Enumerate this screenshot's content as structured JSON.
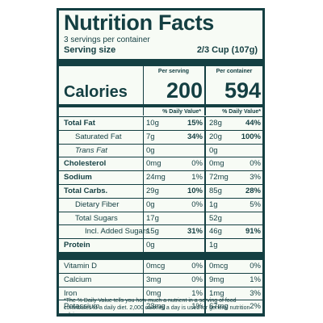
{
  "title": "Nutrition Facts",
  "servings": "3 servings per container",
  "serving_size": {
    "label": "Serving size",
    "value": "2/3 Cup (107g)"
  },
  "columns": {
    "per_serving": "Per serving",
    "per_container": "Per container"
  },
  "calories": {
    "label": "Calories",
    "per_serving": "200",
    "per_container": "594"
  },
  "dv_header": "% Daily Value*",
  "nutrients": [
    {
      "name": "Total Fat",
      "s_amt": "10g",
      "s_dv": "15%",
      "c_amt": "28g",
      "c_dv": "44%"
    },
    {
      "name": "Saturated Fat",
      "s_amt": "7g",
      "s_dv": "34%",
      "c_amt": "20g",
      "c_dv": "100%"
    },
    {
      "name": "Trans Fat",
      "s_amt": "0g",
      "s_dv": "",
      "c_amt": "0g",
      "c_dv": ""
    },
    {
      "name": "Cholesterol",
      "s_amt": "0mg",
      "s_dv": "0%",
      "c_amt": "0mg",
      "c_dv": "0%"
    },
    {
      "name": "Sodium",
      "s_amt": "24mg",
      "s_dv": "1%",
      "c_amt": "72mg",
      "c_dv": "3%"
    },
    {
      "name": "Total Carbs.",
      "s_amt": "29g",
      "s_dv": "10%",
      "c_amt": "85g",
      "c_dv": "28%"
    },
    {
      "name": "Dietary Fiber",
      "s_amt": "0g",
      "s_dv": "0%",
      "c_amt": "1g",
      "c_dv": "5%"
    },
    {
      "name": "Total Sugars",
      "s_amt": "17g",
      "s_dv": "",
      "c_amt": "52g",
      "c_dv": ""
    },
    {
      "name": "Incl. Added Sugars",
      "s_amt": "15g",
      "s_dv": "31%",
      "c_amt": "46g",
      "c_dv": "91%"
    },
    {
      "name": "Protein",
      "s_amt": "0g",
      "s_dv": "",
      "c_amt": "1g",
      "c_dv": ""
    }
  ],
  "vitamins": [
    {
      "name": "Vitamin D",
      "s_amt": "0mcg",
      "s_dv": "0%",
      "c_amt": "0mcg",
      "c_dv": "0%"
    },
    {
      "name": "Calcium",
      "s_amt": "3mg",
      "s_dv": "0%",
      "c_amt": "9mg",
      "c_dv": "1%"
    },
    {
      "name": "Iron",
      "s_amt": "0mg",
      "s_dv": "1%",
      "c_amt": "1mg",
      "c_dv": "3%"
    },
    {
      "name": "Potassium",
      "s_amt": "23mg",
      "s_dv": "1%",
      "c_amt": "67mg",
      "c_dv": "2%"
    }
  ],
  "footnote": "*The % Daily Value tells you how much a nutrient in a serving of food contributes to a daily diet. 2,000 calories a day is used for general nutrition advice.",
  "colors": {
    "ink": "#143f42",
    "background": "#f7fbf5"
  }
}
